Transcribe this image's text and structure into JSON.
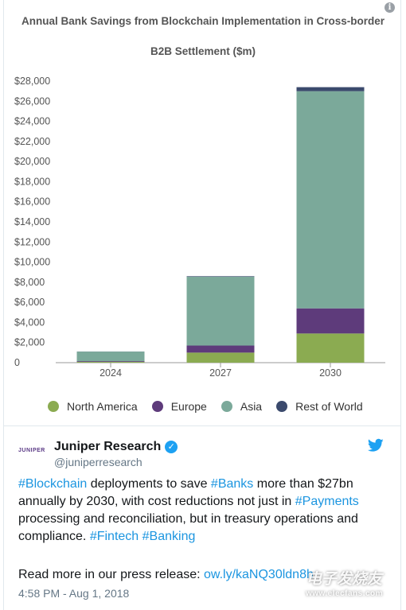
{
  "chart_data": {
    "type": "bar",
    "stacked": true,
    "title_line1": "Annual Bank Savings from Blockchain Implementation in Cross-border",
    "title_line2": "B2B Settlement ($m)",
    "categories": [
      "2024",
      "2027",
      "2030"
    ],
    "series": [
      {
        "name": "North America",
        "color": "#8bab51",
        "values": [
          80,
          1000,
          2900
        ]
      },
      {
        "name": "Europe",
        "color": "#5e3b7b",
        "values": [
          70,
          700,
          2500
        ]
      },
      {
        "name": "Asia",
        "color": "#7ba99a",
        "values": [
          950,
          6850,
          21600
        ]
      },
      {
        "name": "Rest of World",
        "color": "#3b4a6d",
        "values": [
          10,
          50,
          400
        ]
      }
    ],
    "y_ticks": [
      "0",
      "$2,000",
      "$4,000",
      "$6,000",
      "$8,000",
      "$10,000",
      "$12,000",
      "$14,000",
      "$16,000",
      "$18,000",
      "$20,000",
      "$22,000",
      "$24,000",
      "$26,000",
      "$28,000"
    ],
    "ylim": [
      0,
      28000
    ],
    "grid": false,
    "legend_position": "bottom"
  },
  "tweet": {
    "logo_text": "JUNIPER",
    "name": "Juniper Research",
    "handle": "@juniperresearch",
    "verified_icon": "check-badge-icon",
    "bird_icon": "twitter-bird-icon",
    "text_parts": [
      {
        "t": "#Blockchain",
        "link": true
      },
      {
        "t": " deployments to save ",
        "link": false
      },
      {
        "t": "#Banks",
        "link": true
      },
      {
        "t": " more than $27bn annually by 2030, with cost reductions not just in ",
        "link": false
      },
      {
        "t": "#Payments",
        "link": true
      },
      {
        "t": " processing and reconciliation, but in treasury operations and compliance. ",
        "link": false
      },
      {
        "t": "#Fintech",
        "link": true
      },
      {
        "t": " ",
        "link": false
      },
      {
        "t": "#Banking",
        "link": true
      }
    ],
    "press_prefix": "Read more in our press release: ",
    "press_link": "ow.ly/kaNQ30ldn8h",
    "time": "4:58 PM - Aug 1, 2018"
  },
  "watermark": {
    "main": "电子发烧友",
    "sub": "www.elecfans.com"
  },
  "info_icon_label": "i"
}
